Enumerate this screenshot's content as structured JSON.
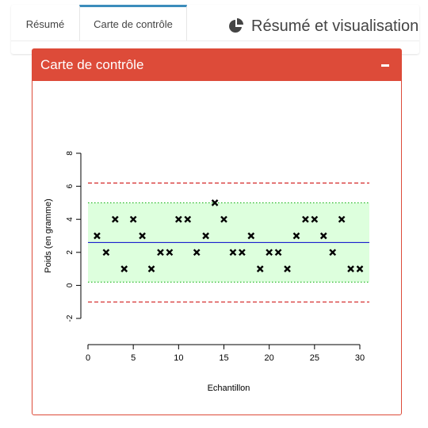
{
  "tabs": [
    {
      "label": "Résumé",
      "active": false
    },
    {
      "label": "Carte de contrôle",
      "active": true
    }
  ],
  "header": {
    "title": "Résumé et visualisation",
    "icon": "pie-chart-icon"
  },
  "box": {
    "title": "Carte de contrôle",
    "collapse_icon": "minus-icon",
    "header_color": "#dd4b39"
  },
  "colors": {
    "accent": "#3c8dbc",
    "center_line": "#0000cc",
    "limit_line": "#cc0000",
    "band_fill": "#ddffdd",
    "band_line": "#00aa00"
  },
  "chart_data": {
    "type": "scatter",
    "xlabel": "Echantillon",
    "ylabel": "Poids (en gramme)",
    "xlim": [
      0,
      30
    ],
    "ylim": [
      -2,
      8
    ],
    "x_ticks": [
      "0",
      "5",
      "10",
      "15",
      "20",
      "25",
      "30"
    ],
    "y_ticks": [
      "-2",
      "0",
      "2",
      "4",
      "6",
      "8"
    ],
    "marker": "x",
    "x": [
      1,
      2,
      3,
      4,
      5,
      6,
      7,
      8,
      9,
      10,
      11,
      12,
      13,
      14,
      15,
      16,
      17,
      18,
      19,
      20,
      21,
      22,
      23,
      24,
      25,
      26,
      27,
      28,
      29,
      30
    ],
    "y": [
      3,
      2,
      4,
      1,
      4,
      3,
      1,
      2,
      2,
      4,
      4,
      2,
      3,
      5,
      4,
      2,
      2,
      3,
      1,
      2,
      2,
      1,
      3,
      4,
      4,
      3,
      2,
      4,
      1,
      1
    ],
    "center_line": 2.6,
    "warning_band": [
      0.2,
      5.0
    ],
    "control_limits": [
      -1.0,
      6.2
    ]
  }
}
